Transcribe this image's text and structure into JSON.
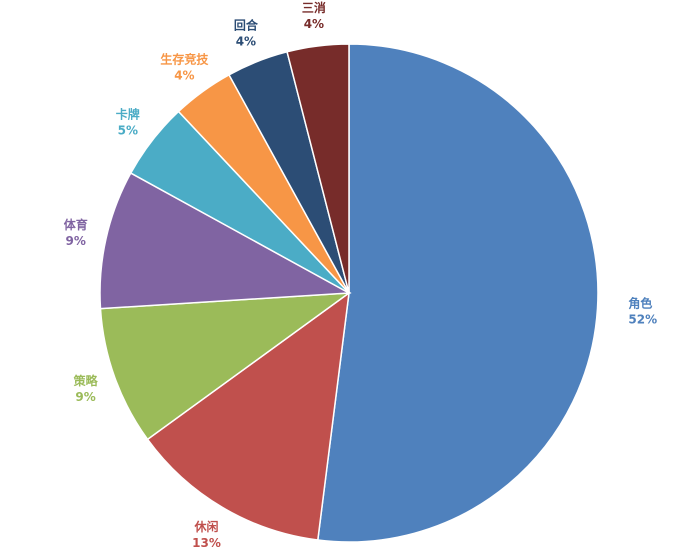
{
  "chart_data": {
    "type": "pie",
    "title": "",
    "start_angle_deg": 0,
    "direction": "clockwise",
    "slices": [
      {
        "label": "角色",
        "value": 52,
        "value_label": "52%",
        "color": "#4F81BD"
      },
      {
        "label": "休闲",
        "value": 13,
        "value_label": "13%",
        "color": "#C0504D"
      },
      {
        "label": "策略",
        "value": 9,
        "value_label": "9%",
        "color": "#9BBB59"
      },
      {
        "label": "体育",
        "value": 9,
        "value_label": "9%",
        "color": "#8064A2"
      },
      {
        "label": "卡牌",
        "value": 5,
        "value_label": "5%",
        "color": "#4BACC6"
      },
      {
        "label": "生存竞技",
        "value": 4,
        "value_label": "4%",
        "color": "#F79646"
      },
      {
        "label": "回合",
        "value": 4,
        "value_label": "4%",
        "color": "#2C4D75"
      },
      {
        "label": "三消",
        "value": 4,
        "value_label": "4%",
        "color": "#772C2A"
      }
    ],
    "legend": "none",
    "data_labels": "outside"
  }
}
